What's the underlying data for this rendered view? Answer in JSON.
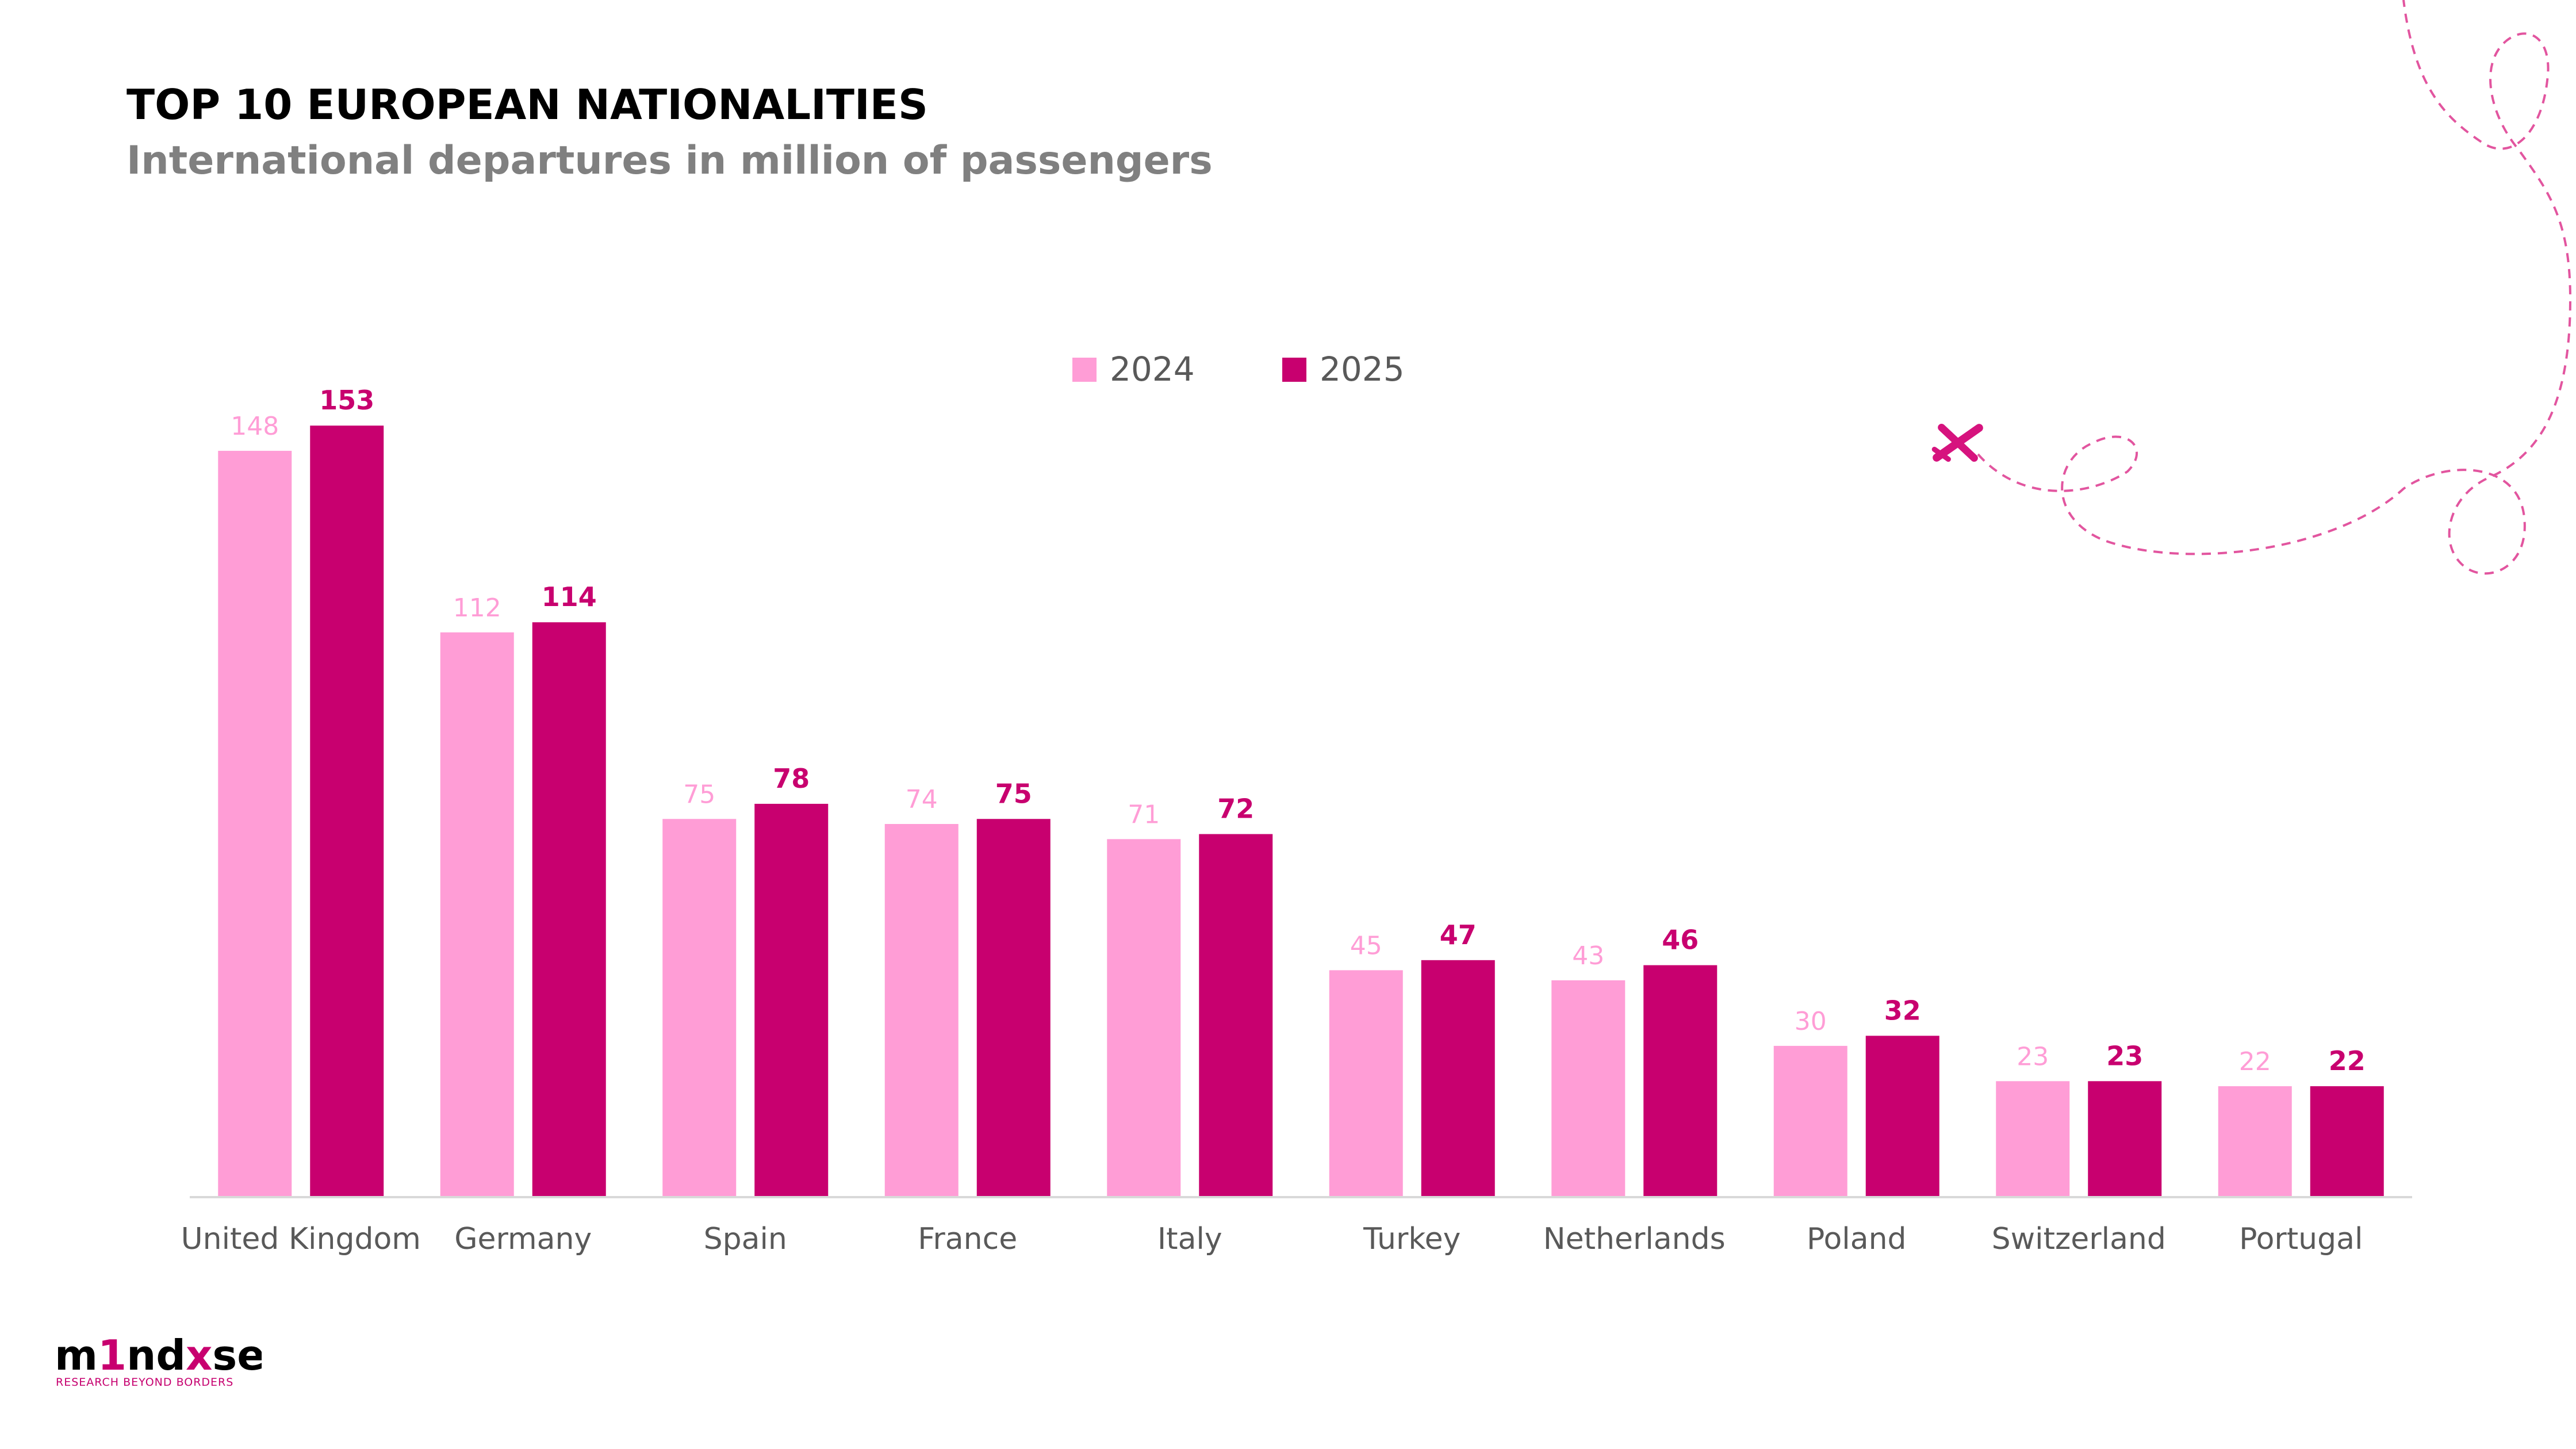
{
  "title": "TOP 10 EUROPEAN NATIONALITIES",
  "subtitle": "International departures in million of passengers",
  "colors": {
    "series_2024": "#ff9dd6",
    "series_2025": "#c8006f",
    "axis": "#d9d9d9",
    "category_text": "#595959",
    "title": "#000000",
    "subtitle": "#808080"
  },
  "logo": {
    "word": "m1nd-set",
    "tagline": "RESEARCH BEYOND BORDERS"
  },
  "chart_data": {
    "type": "bar",
    "categories": [
      "United Kingdom",
      "Germany",
      "Spain",
      "France",
      "Italy",
      "Turkey",
      "Netherlands",
      "Poland",
      "Switzerland",
      "Portugal"
    ],
    "series": [
      {
        "name": "2024",
        "values": [
          148,
          112,
          75,
          74,
          71,
          45,
          43,
          30,
          23,
          22
        ]
      },
      {
        "name": "2025",
        "values": [
          153,
          114,
          78,
          75,
          72,
          47,
          46,
          32,
          23,
          22
        ]
      }
    ],
    "legend_position": "top-center",
    "grid": false,
    "data_labels": true
  }
}
